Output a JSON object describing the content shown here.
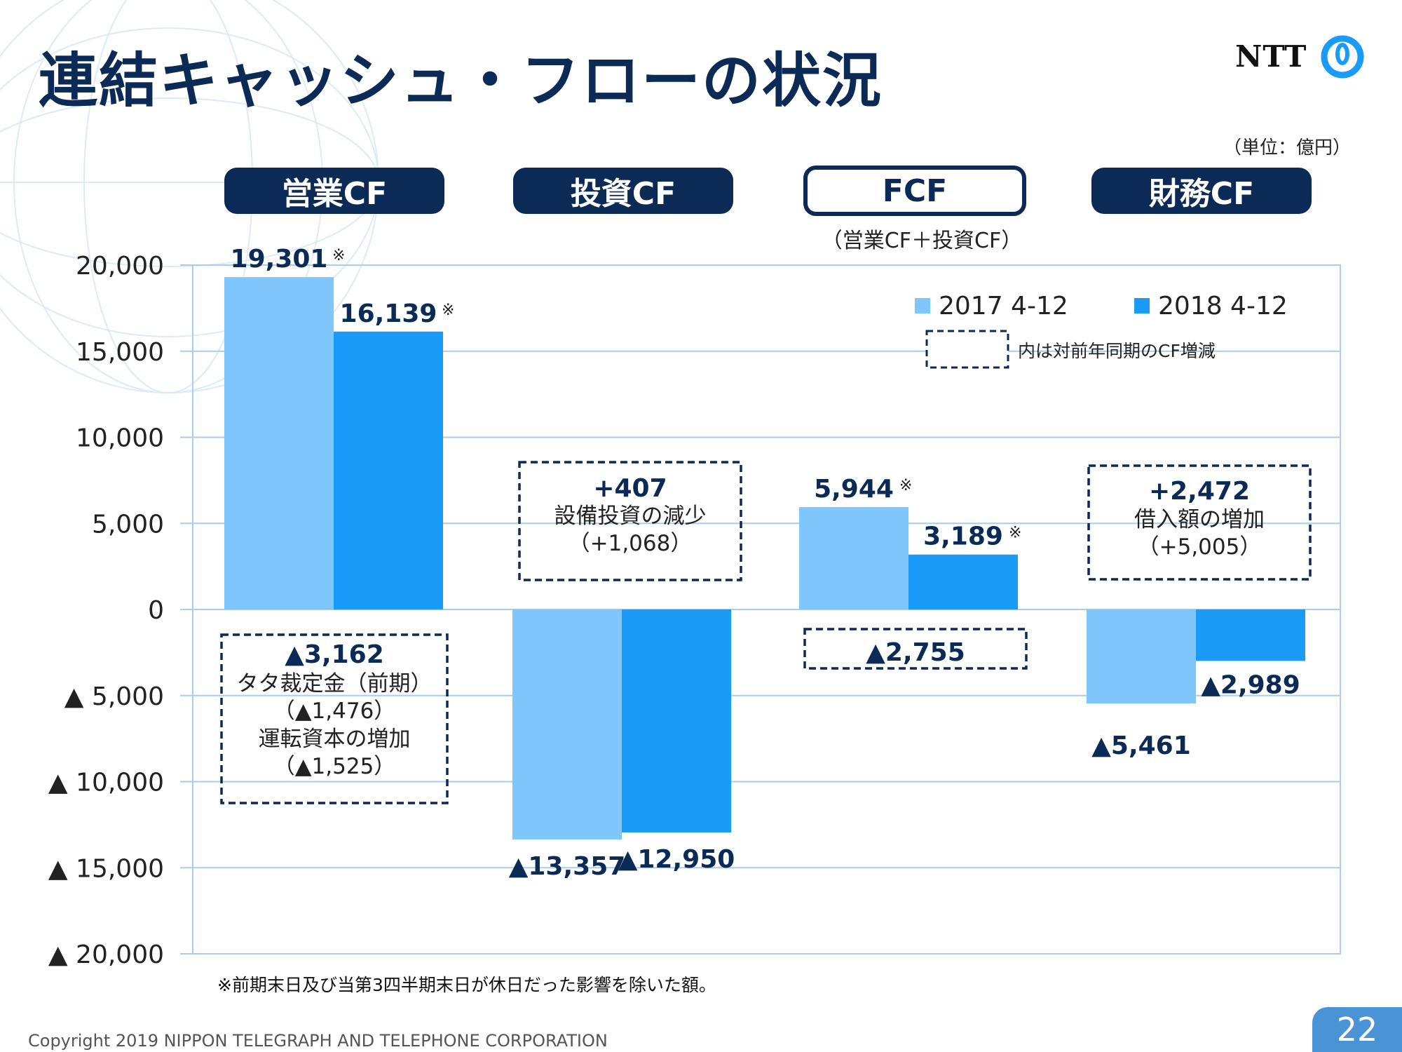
{
  "page": {
    "title": "連結キャッシュ・フローの状況",
    "logo_text": "NTT",
    "unit_label": "（単位：億円）",
    "copyright": "Copyright 2019 NIPPON TELEGRAPH AND TELEPHONE CORPORATION",
    "page_number": "22",
    "footnote": "※前期末日及び当第3四半期末日が休日だった影響を除いた額。",
    "fcf_subtitle": "（営業CF＋投資CF）"
  },
  "colors": {
    "navy": "#0b2a55",
    "series_2017": "#7ec6fb",
    "series_2018": "#1a9bf8",
    "grid": "#a9cdee"
  },
  "chart_data": {
    "type": "bar",
    "categories": [
      "営業CF",
      "投資CF",
      "FCF",
      "財務CF"
    ],
    "category_styles": [
      "filled",
      "filled",
      "outline",
      "filled"
    ],
    "series": [
      {
        "name": "2017 4-12",
        "values": [
          19301,
          -13357,
          5944,
          -5461
        ]
      },
      {
        "name": "2018 4-12",
        "values": [
          16139,
          -12950,
          3189,
          -2989
        ]
      }
    ],
    "value_labels": [
      [
        "19,301",
        "▲13,357",
        "5,944",
        "▲5,461"
      ],
      [
        "16,139",
        "▲12,950",
        "3,189",
        "▲2,989"
      ]
    ],
    "value_label_marks": [
      [
        "※",
        "",
        "※",
        ""
      ],
      [
        "※",
        "",
        "※",
        ""
      ]
    ],
    "ylim": [
      -20000,
      20000
    ],
    "ytick_values": [
      20000,
      15000,
      10000,
      5000,
      0,
      -5000,
      -10000,
      -15000,
      -20000
    ],
    "ytick_labels": [
      "20,000",
      "15,000",
      "10,000",
      "5,000",
      "0",
      "▲ 5,000",
      "▲ 10,000",
      "▲ 15,000",
      "▲ 20,000"
    ],
    "grid": true,
    "legend_position": "top-right",
    "legend_note": "内は対前年同期のCF増減",
    "annotations": [
      {
        "category": "営業CF",
        "lines": [
          "▲3,162",
          "タタ裁定金（前期）",
          "（▲1,476）",
          "運転資本の増加",
          "（▲1,525）"
        ]
      },
      {
        "category": "投資CF",
        "lines": [
          "+407",
          "設備投資の減少",
          "（+1,068）"
        ]
      },
      {
        "category": "FCF",
        "lines": [
          "▲2,755"
        ]
      },
      {
        "category": "財務CF",
        "lines": [
          "+2,472",
          "借入額の増加",
          "（+5,005）"
        ]
      }
    ]
  }
}
